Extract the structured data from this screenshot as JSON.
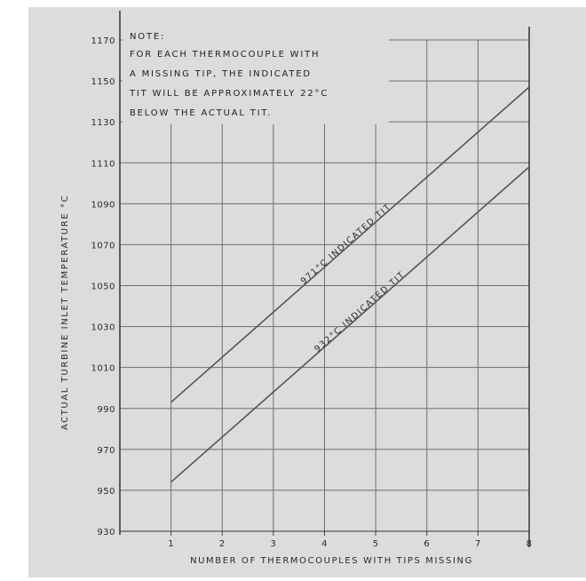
{
  "chart_data": {
    "type": "line",
    "title": "",
    "xlabel": "NUMBER OF THERMOCOUPLES WITH TIPS MISSING",
    "ylabel": "ACTUAL TURBINE INLET TEMPERATURE °C",
    "x_ticks": [
      "1",
      "2",
      "3",
      "4",
      "5",
      "6",
      "7",
      "8"
    ],
    "y_ticks": [
      "930",
      "950",
      "970",
      "990",
      "1010",
      "1030",
      "1050",
      "1070",
      "1090",
      "1110",
      "1130",
      "1150",
      "1170"
    ],
    "xlim": [
      0,
      8
    ],
    "ylim": [
      930,
      1170
    ],
    "grid": true,
    "legend": "none",
    "note": {
      "lines": [
        "NOTE:",
        "FOR EACH THERMOCOUPLE WITH",
        "A MISSING TIP, THE INDICATED",
        "TIT WILL BE APPROXIMATELY 22°C",
        "BELOW THE ACTUAL TIT."
      ]
    },
    "series": [
      {
        "name": "971°C INDICATED TIT",
        "x": [
          1,
          8
        ],
        "y": [
          993,
          1147
        ]
      },
      {
        "name": "932°C INDICATED TIT",
        "x": [
          1,
          8
        ],
        "y": [
          954,
          1108
        ]
      }
    ],
    "colors": {
      "background": "#dcdcdc",
      "grid": "#6e6e6e",
      "line": "#555555",
      "text": "#2a2a2a"
    }
  }
}
